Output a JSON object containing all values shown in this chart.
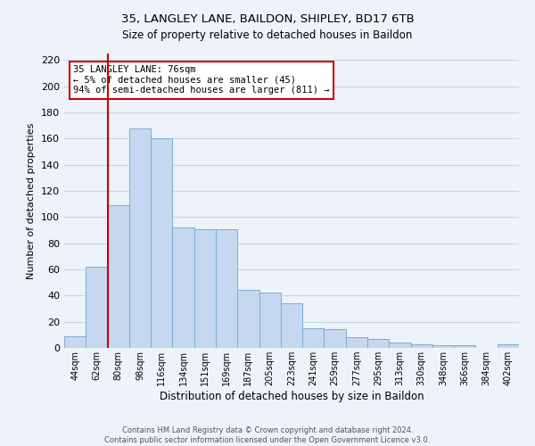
{
  "title": "35, LANGLEY LANE, BAILDON, SHIPLEY, BD17 6TB",
  "subtitle": "Size of property relative to detached houses in Baildon",
  "xlabel": "Distribution of detached houses by size in Baildon",
  "ylabel": "Number of detached properties",
  "categories": [
    "44sqm",
    "62sqm",
    "80sqm",
    "98sqm",
    "116sqm",
    "134sqm",
    "151sqm",
    "169sqm",
    "187sqm",
    "205sqm",
    "223sqm",
    "241sqm",
    "259sqm",
    "277sqm",
    "295sqm",
    "313sqm",
    "330sqm",
    "348sqm",
    "366sqm",
    "384sqm",
    "402sqm"
  ],
  "values": [
    9,
    62,
    109,
    168,
    160,
    92,
    91,
    91,
    44,
    42,
    34,
    15,
    14,
    8,
    7,
    4,
    3,
    2,
    2,
    0,
    3
  ],
  "bar_color": "#c5d8ef",
  "bar_edge_color": "#7aadd4",
  "vline_color": "#cc0000",
  "annotation_text": "35 LANGLEY LANE: 76sqm\n← 5% of detached houses are smaller (45)\n94% of semi-detached houses are larger (811) →",
  "annotation_box_color": "#ffffff",
  "annotation_box_edge_color": "#cc0000",
  "ylim": [
    0,
    225
  ],
  "yticks": [
    0,
    20,
    40,
    60,
    80,
    100,
    120,
    140,
    160,
    180,
    200,
    220
  ],
  "footer1": "Contains HM Land Registry data © Crown copyright and database right 2024.",
  "footer2": "Contains public sector information licensed under the Open Government Licence v3.0.",
  "bg_color": "#eef2f9",
  "grid_color": "#d0d8e8"
}
